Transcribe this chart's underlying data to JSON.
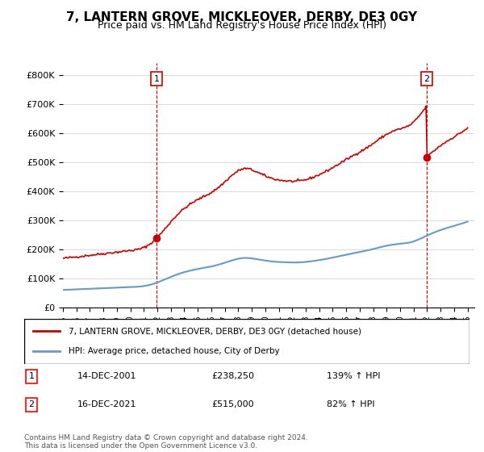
{
  "title": "7, LANTERN GROVE, MICKLEOVER, DERBY, DE3 0GY",
  "subtitle": "Price paid vs. HM Land Registry's House Price Index (HPI)",
  "sale1_date": "14-DEC-2001",
  "sale1_price": 238250,
  "sale1_hpi": "139% ↑ HPI",
  "sale1_label": "1",
  "sale1_year": 2001.95,
  "sale2_date": "16-DEC-2021",
  "sale2_price": 515000,
  "sale2_hpi": "82% ↑ HPI",
  "sale2_label": "2",
  "sale2_year": 2021.95,
  "legend_property": "7, LANTERN GROVE, MICKLEOVER, DERBY, DE3 0GY (detached house)",
  "legend_hpi": "HPI: Average price, detached house, City of Derby",
  "footer": "Contains HM Land Registry data © Crown copyright and database right 2024.\nThis data is licensed under the Open Government Licence v3.0.",
  "red_color": "#cc0000",
  "blue_color": "#6699cc",
  "dashed_color": "#cc0000",
  "ylim": [
    0,
    800000
  ],
  "xlim_start": 1995.0,
  "xlim_end": 2025.5,
  "xticks": [
    1995,
    1996,
    1997,
    1998,
    1999,
    2000,
    2001,
    2002,
    2003,
    2004,
    2005,
    2006,
    2007,
    2008,
    2009,
    2010,
    2011,
    2012,
    2013,
    2014,
    2015,
    2016,
    2017,
    2018,
    2019,
    2020,
    2021,
    2022,
    2023,
    2024,
    2025
  ],
  "yticks": [
    0,
    100000,
    200000,
    300000,
    400000,
    500000,
    600000,
    700000,
    800000
  ]
}
